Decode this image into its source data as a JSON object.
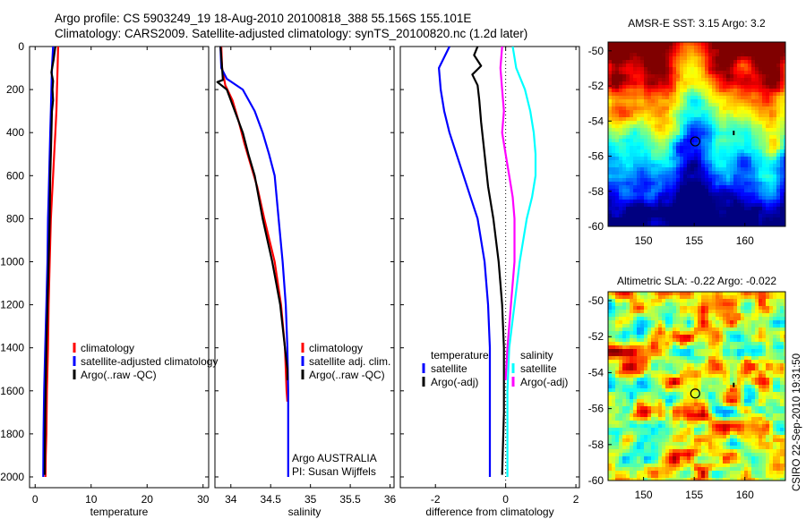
{
  "figure": {
    "title_line1": "Argo profile: CS 5903249_19 18-Aug-2010 20100818_388 55.156S 155.101E",
    "title_line2": "Climatology: CARS2009. Satellite-adjusted climatology: synTS_20100820.nc (1.2d later)",
    "side_stamp": "CSIRO 22-Sep-2010 19:31:50"
  },
  "colors": {
    "climatology": "#ff0000",
    "satellite": "#0000ff",
    "argo": "#000000",
    "salinity_satellite": "#00ffff",
    "argo_adj_salinity": "#ff00ff"
  },
  "chart_data": [
    {
      "type": "line",
      "id": "temperature",
      "xlabel": "temperature",
      "ylabel": "",
      "xlim": [
        -1,
        31
      ],
      "ylim": [
        2050,
        0
      ],
      "xticks": [
        0,
        10,
        20,
        30
      ],
      "yticks": [
        0,
        200,
        400,
        600,
        800,
        1000,
        1200,
        1400,
        1600,
        1800,
        2000
      ],
      "legend": [
        "climatology",
        "satellite-adjusted climatology",
        "Argo(..raw -QC)"
      ],
      "series": [
        {
          "name": "climatology",
          "color": "#ff0000",
          "x": [
            4.1,
            4.0,
            3.9,
            3.8,
            3.6,
            3.4,
            3.2,
            3.0,
            2.8,
            2.6,
            2.4,
            2.3,
            2.1,
            2.0,
            1.9,
            1.85
          ],
          "y": [
            0,
            100,
            200,
            300,
            400,
            500,
            600,
            700,
            800,
            1000,
            1200,
            1400,
            1600,
            1800,
            1900,
            2000
          ]
        },
        {
          "name": "satellite-adjusted climatology",
          "color": "#0000ff",
          "x": [
            3.2,
            3.0,
            2.9,
            2.8,
            2.7,
            2.6,
            2.5,
            2.4,
            2.3,
            2.2,
            2.0,
            1.8,
            1.6,
            1.5,
            1.45
          ],
          "y": [
            0,
            100,
            200,
            300,
            400,
            500,
            600,
            700,
            800,
            1000,
            1200,
            1400,
            1600,
            1800,
            2000
          ]
        },
        {
          "name": "Argo(..raw -QC)",
          "color": "#000000",
          "x": [
            3.6,
            3.3,
            2.9,
            3.2,
            3.1,
            3.2,
            3.0,
            2.9,
            2.8,
            2.7,
            2.6,
            2.4,
            2.2,
            2.0,
            1.8,
            1.7
          ],
          "y": [
            0,
            60,
            120,
            160,
            200,
            250,
            300,
            400,
            500,
            600,
            800,
            1000,
            1200,
            1400,
            1700,
            1990
          ]
        }
      ]
    },
    {
      "type": "line",
      "id": "salinity",
      "xlabel": "salinity",
      "ylabel": "",
      "xlim": [
        33.8,
        36.05
      ],
      "ylim": [
        2050,
        0
      ],
      "xticks": [
        34,
        34.5,
        35,
        35.5,
        36
      ],
      "xticklabels": [
        "34",
        "34.5",
        "35",
        "35.5",
        "36"
      ],
      "legend": [
        "climatology",
        "satellite adj. clim.",
        "Argo(..raw -QC)"
      ],
      "annotations": [
        "Argo AUSTRALIA",
        "PI: Susan Wijffels"
      ],
      "series": [
        {
          "name": "climatology",
          "color": "#ff0000",
          "x": [
            33.88,
            33.89,
            33.93,
            34.02,
            34.1,
            34.17,
            34.25,
            34.33,
            34.42,
            34.55,
            34.63,
            34.68,
            34.7,
            34.71
          ],
          "y": [
            0,
            100,
            180,
            250,
            350,
            450,
            550,
            650,
            800,
            1000,
            1200,
            1400,
            1600,
            1650
          ]
        },
        {
          "name": "satellite adj. clim.",
          "color": "#0000ff",
          "x": [
            33.87,
            33.88,
            33.95,
            34.15,
            34.3,
            34.4,
            34.48,
            34.55,
            34.6,
            34.65,
            34.69,
            34.71,
            34.72,
            34.72
          ],
          "y": [
            0,
            100,
            150,
            200,
            300,
            400,
            500,
            600,
            800,
            1000,
            1200,
            1400,
            1600,
            2000
          ]
        },
        {
          "name": "Argo(..raw -QC)",
          "color": "#000000",
          "x": [
            33.87,
            33.89,
            33.9,
            33.83,
            33.95,
            34.05,
            34.15,
            34.22,
            34.3,
            34.4,
            34.52,
            34.62,
            34.68,
            34.71,
            34.71
          ],
          "y": [
            0,
            100,
            155,
            165,
            200,
            300,
            400,
            500,
            600,
            800,
            1000,
            1200,
            1400,
            1500,
            1550
          ]
        }
      ]
    },
    {
      "type": "line",
      "id": "difference",
      "xlabel": "difference from climatology",
      "ylabel": "",
      "xlim": [
        -3.0,
        2.1
      ],
      "ylim": [
        2050,
        0
      ],
      "xticks": [
        -2,
        0,
        2
      ],
      "legend_headers": [
        "temperature",
        "salinity"
      ],
      "legend": [
        "satellite",
        "Argo(-adj)",
        "satellite",
        "Argo(-adj)"
      ],
      "series": [
        {
          "name": "temperature satellite",
          "color": "#0000ff",
          "x": [
            -1.6,
            -1.9,
            -1.85,
            -1.75,
            -1.6,
            -1.4,
            -1.2,
            -1.0,
            -0.8,
            -0.6,
            -0.5,
            -0.45,
            -0.45,
            -0.45
          ],
          "y": [
            0,
            100,
            200,
            300,
            400,
            500,
            600,
            700,
            800,
            1000,
            1200,
            1400,
            1600,
            2000
          ]
        },
        {
          "name": "temperature Argo(-adj)",
          "color": "#000000",
          "x": [
            -0.8,
            -0.9,
            -0.7,
            -0.95,
            -0.8,
            -0.75,
            -0.7,
            -0.6,
            -0.5,
            -0.35,
            -0.2,
            -0.1,
            -0.05,
            -0.05,
            -0.1
          ],
          "y": [
            0,
            40,
            90,
            130,
            180,
            250,
            350,
            500,
            650,
            800,
            1000,
            1200,
            1400,
            1700,
            1990
          ]
        },
        {
          "name": "salinity satellite",
          "color": "#00ffff",
          "x": [
            0.2,
            0.3,
            0.55,
            0.7,
            0.8,
            0.85,
            0.85,
            0.75,
            0.6,
            0.4,
            0.25,
            0.1,
            0.05,
            0.05
          ],
          "y": [
            0,
            100,
            200,
            300,
            400,
            500,
            600,
            700,
            800,
            1000,
            1200,
            1400,
            1600,
            2000
          ]
        },
        {
          "name": "salinity Argo(-adj)",
          "color": "#ff00ff",
          "x": [
            -0.1,
            -0.15,
            -0.1,
            -0.05,
            -0.1,
            0.0,
            0.1,
            0.2,
            0.25,
            0.25,
            0.15,
            0.05,
            0.0
          ],
          "y": [
            0,
            100,
            200,
            300,
            400,
            500,
            600,
            700,
            800,
            1000,
            1200,
            1400,
            1550
          ]
        }
      ]
    },
    {
      "type": "heatmap",
      "id": "amsre_sst",
      "title": "AMSR-E SST: 3.15 Argo: 3.2",
      "xlim": [
        146.5,
        164
      ],
      "ylim": [
        -60,
        -49.5
      ],
      "xticks": [
        150,
        155,
        160
      ],
      "yticks": [
        -50,
        -52,
        -54,
        -56,
        -58,
        -60
      ],
      "marker": {
        "lon": 155.1,
        "lat": -55.16
      }
    },
    {
      "type": "heatmap",
      "id": "altimetric_sla",
      "title": "Altimetric SLA: -0.22 Argo: -0.022",
      "xlim": [
        146.5,
        164
      ],
      "ylim": [
        -60,
        -49.5
      ],
      "xticks": [
        150,
        155,
        160
      ],
      "yticks": [
        -50,
        -52,
        -54,
        -56,
        -58,
        -60
      ],
      "marker": {
        "lon": 155.1,
        "lat": -55.16
      }
    }
  ]
}
